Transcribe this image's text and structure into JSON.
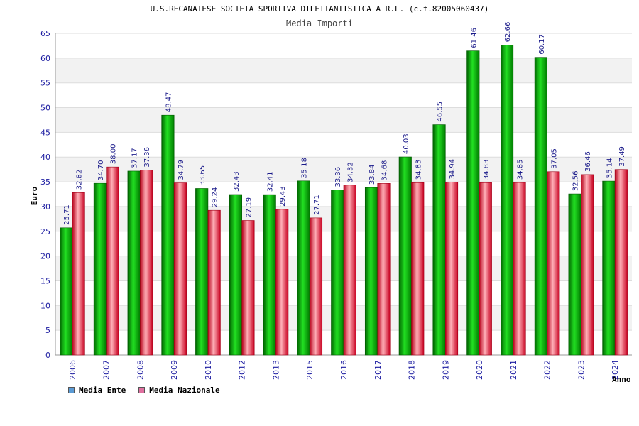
{
  "chart_data": {
    "type": "bar",
    "title": "U.S.RECANATESE SOCIETA SPORTIVA DILETTANTISTICA A R.L. (c.f.82005060437)",
    "subtitle": "Media Importi",
    "xlabel": "Anno",
    "ylabel": "Euro",
    "ylim": [
      0,
      65
    ],
    "yticks": [
      0,
      5,
      10,
      15,
      20,
      25,
      30,
      35,
      40,
      45,
      50,
      55,
      60,
      65
    ],
    "categories": [
      "2006",
      "2007",
      "2008",
      "2009",
      "2010",
      "2012",
      "2013",
      "2015",
      "2016",
      "2017",
      "2018",
      "2019",
      "2020",
      "2021",
      "2022",
      "2023",
      "2024"
    ],
    "series": [
      {
        "name": "Media Ente",
        "color": "#00b000",
        "legend_color": "#5b9bd5",
        "values": [
          25.71,
          34.7,
          37.17,
          48.47,
          33.65,
          32.43,
          32.41,
          35.18,
          33.36,
          33.84,
          40.03,
          46.55,
          61.46,
          62.66,
          60.17,
          32.56,
          35.14
        ]
      },
      {
        "name": "Media Nazionale",
        "color": "#e8283a",
        "legend_color": "#e070a0",
        "values": [
          32.82,
          38.0,
          37.36,
          34.79,
          29.24,
          27.19,
          29.43,
          27.71,
          34.32,
          34.68,
          34.83,
          34.94,
          34.83,
          34.85,
          37.05,
          36.46,
          37.49
        ]
      }
    ],
    "value_labels": [
      [
        "25.71",
        "34.70",
        "37.17",
        "48.47",
        "33.65",
        "32.43",
        "32.41",
        "35.18",
        "33.36",
        "33.84",
        "40.03",
        "46.55",
        "61.46",
        "62.66",
        "60.17",
        "32.56",
        "35.14"
      ],
      [
        "32.82",
        "38.00",
        "37.36",
        "34.79",
        "29.24",
        "27.19",
        "29.43",
        "27.71",
        "34.32",
        "34.68",
        "34.83",
        "34.94",
        "34.83",
        "34.85",
        "37.05",
        "36.46",
        "37.49"
      ]
    ],
    "grid": true,
    "legend_position": "bottom-left"
  }
}
